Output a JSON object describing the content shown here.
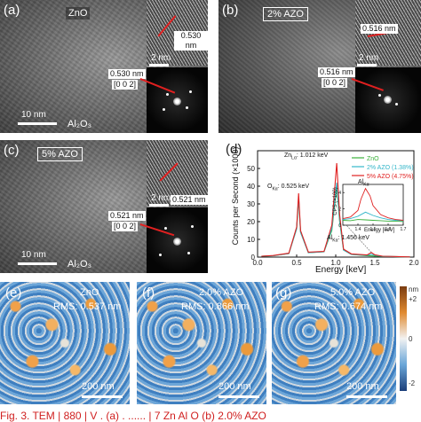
{
  "panel_a": {
    "label": "(a)",
    "material": "ZnO",
    "substrate": "Al₂O₃",
    "scale_main": "10 nm",
    "scale_inset": "2 nm",
    "dspacing_hr": "0.530 nm",
    "dspacing_fft": "0.530 nm",
    "plane": "[0 0 2]"
  },
  "panel_b": {
    "label": "(b)",
    "material": "2% AZO",
    "scale_inset": "2 nm",
    "dspacing_hr": "0.516 nm",
    "dspacing_fft": "0.516 nm",
    "plane": "[0 0 2]"
  },
  "panel_c": {
    "label": "(c)",
    "material": "5% AZO",
    "substrate": "Al₂O₃",
    "scale_main": "10 nm",
    "scale_inset": "2 nm",
    "dspacing_hr": "0.521 nm",
    "dspacing_fft": "0.521 nm",
    "plane": "[0 0 2]"
  },
  "panel_d": {
    "label": "(d)",
    "ylabel": "Counts per Second (×1000)",
    "xlabel": "Energy [keV]",
    "ann_zn": "Zn",
    "ann_zn_sub": "Lα",
    "ann_zn_val": ": 1.012 keV",
    "ann_o": "O",
    "ann_o_sub": "Kα",
    "ann_o_val": ": 0.525 keV",
    "ann_al": "Al",
    "ann_al_sub": "Kα",
    "ann_al_val": ": 1.456 keV",
    "inset_ylabel": "CPS (×100)",
    "inset_xlabel": "Energy [keV]",
    "inset_title": "Al",
    "inset_title_sub": "Kα",
    "colors": {
      "zno": "#3ab03a",
      "azo2": "#33b6c9",
      "azo5": "#e02020"
    }
  },
  "afm": {
    "panel_e": {
      "label": "(e)",
      "material": "ZnO",
      "rms": "RMS: 0.537 nm",
      "scale": "200 nm"
    },
    "panel_f": {
      "label": "(f)",
      "material": "2.0% AZO",
      "rms": "RMS: 0.866 nm",
      "scale": "200 nm"
    },
    "panel_g": {
      "label": "(g)",
      "material": "5.0% AZO",
      "rms": "RMS: 0.674 nm",
      "scale": "200 nm"
    },
    "colorbar_unit": "nm",
    "colorbar_ticks": [
      "+2",
      "0",
      "-2"
    ]
  },
  "caption": "Fig. 3.  TEM  |  880 |  V . (a)  . ...... |  7  Zn  Al  O   (b) 2.0%  AZO",
  "chart_data": {
    "type": "line",
    "title": "",
    "xlabel": "Energy [keV]",
    "ylabel": "Counts per Second (×1000)",
    "xlim": [
      0,
      2
    ],
    "ylim": [
      0,
      60
    ],
    "xticks": [
      0.0,
      0.5,
      1.0,
      1.5,
      2.0
    ],
    "yticks": [
      0,
      10,
      20,
      30,
      40,
      50
    ],
    "legend_position": "top-right",
    "series": [
      {
        "name": "ZnO",
        "color": "#3ab03a",
        "x": [
          0.05,
          0.2,
          0.4,
          0.5,
          0.525,
          0.55,
          0.65,
          0.85,
          0.95,
          1.012,
          1.05,
          1.1,
          1.2,
          1.4,
          1.6,
          1.8,
          1.95
        ],
        "y": [
          0.5,
          0.8,
          2,
          16,
          33,
          14,
          2.5,
          3,
          15,
          40,
          20,
          4,
          1.5,
          0.8,
          0.4,
          0.2,
          0.1
        ]
      },
      {
        "name": "2% AZO (1.38%)",
        "color": "#33b6c9",
        "x": [
          0.05,
          0.2,
          0.4,
          0.5,
          0.525,
          0.55,
          0.65,
          0.85,
          0.95,
          1.012,
          1.05,
          1.1,
          1.2,
          1.4,
          1.456,
          1.5,
          1.6,
          1.8,
          1.95
        ],
        "y": [
          0.5,
          0.8,
          2,
          16,
          34,
          14,
          2.5,
          3,
          16,
          42,
          21,
          4,
          1.5,
          1,
          1.6,
          1,
          0.4,
          0.2,
          0.1
        ]
      },
      {
        "name": "5% AZO (4.75%)",
        "color": "#e02020",
        "x": [
          0.05,
          0.2,
          0.4,
          0.5,
          0.525,
          0.55,
          0.65,
          0.85,
          0.95,
          1.012,
          1.05,
          1.1,
          1.2,
          1.4,
          1.456,
          1.5,
          1.6,
          1.8,
          1.95
        ],
        "y": [
          0.5,
          0.9,
          2.2,
          17,
          36,
          15,
          2.8,
          3.2,
          18,
          53,
          24,
          4.5,
          1.8,
          1.2,
          2.6,
          1.3,
          0.5,
          0.3,
          0.1
        ]
      }
    ],
    "inset": {
      "xlabel": "Energy [keV]",
      "ylabel": "CPS (×100)",
      "xlim": [
        1.3,
        1.7
      ],
      "ylim": [
        0,
        5
      ],
      "xticks": [
        1.4,
        1.5,
        1.6,
        1.7
      ],
      "yticks": [
        0,
        2,
        4
      ],
      "series": [
        {
          "name": "ZnO",
          "color": "#3ab03a",
          "x": [
            1.3,
            1.35,
            1.4,
            1.45,
            1.5,
            1.55,
            1.6,
            1.65,
            1.7
          ],
          "y": [
            0.6,
            0.55,
            0.7,
            0.65,
            0.6,
            0.55,
            0.5,
            0.5,
            0.45
          ]
        },
        {
          "name": "2% AZO (1.38%)",
          "color": "#33b6c9",
          "x": [
            1.3,
            1.35,
            1.4,
            1.45,
            1.5,
            1.55,
            1.6,
            1.65,
            1.7
          ],
          "y": [
            0.7,
            0.8,
            1.1,
            1.6,
            1.2,
            0.9,
            0.7,
            0.6,
            0.55
          ]
        },
        {
          "name": "5% AZO (4.75%)",
          "color": "#e02020",
          "x": [
            1.3,
            1.35,
            1.4,
            1.42,
            1.45,
            1.48,
            1.5,
            1.55,
            1.6,
            1.65,
            1.7
          ],
          "y": [
            0.8,
            1.0,
            1.8,
            3.2,
            4.5,
            3.6,
            2.4,
            1.3,
            0.9,
            0.7,
            0.6
          ]
        }
      ]
    }
  }
}
